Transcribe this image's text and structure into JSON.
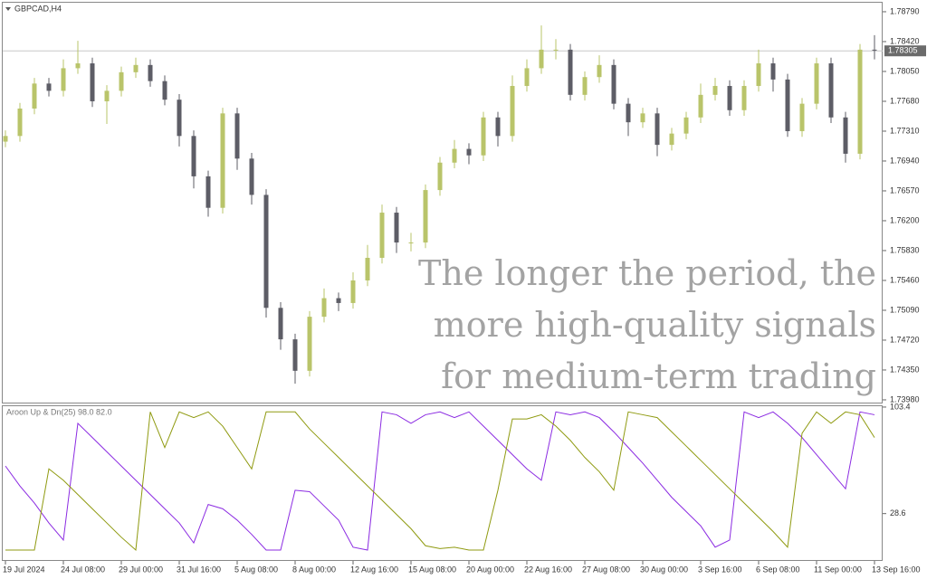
{
  "chart_data": [
    {
      "type": "candlestick",
      "title": "GBPCAD,H4",
      "annotation": [
        "The longer the period, the",
        "more high-quality signals",
        "for medium-term trading"
      ],
      "categories": [
        "19 Jul 2024",
        null,
        null,
        null,
        "24 Jul 08:00",
        null,
        null,
        null,
        "29 Jul 00:00",
        null,
        null,
        null,
        "31 Jul 16:00",
        null,
        null,
        null,
        "5 Aug 08:00",
        null,
        null,
        null,
        "8 Aug 00:00",
        null,
        null,
        null,
        "12 Aug 16:00",
        null,
        null,
        null,
        "15 Aug 08:00",
        null,
        null,
        null,
        "20 Aug 00:00",
        null,
        null,
        null,
        "22 Aug 16:00",
        null,
        null,
        null,
        "27 Aug 08:00",
        null,
        null,
        null,
        "30 Aug 00:00",
        null,
        null,
        null,
        "3 Sep 16:00",
        null,
        null,
        null,
        "6 Sep 08:00",
        null,
        null,
        null,
        "11 Sep 00:00",
        null,
        null,
        null,
        "13 Sep 16:00"
      ],
      "open": [
        1.7718,
        1.7725,
        1.7759,
        1.779,
        1.7781,
        1.7809,
        1.7815,
        1.7768,
        1.7781,
        1.7804,
        1.7813,
        1.7793,
        1.777,
        1.7725,
        1.7675,
        1.7636,
        1.7753,
        1.7697,
        1.7652,
        1.7512,
        1.7473,
        1.7434,
        1.7501,
        1.7524,
        1.7518,
        1.7546,
        1.7574,
        1.763,
        1.7593,
        1.7593,
        1.7658,
        1.7692,
        1.7709,
        1.7701,
        1.7748,
        1.7725,
        1.7787,
        1.7809,
        1.7832,
        1.7832,
        1.7776,
        1.7798,
        1.7813,
        1.7765,
        1.7742,
        1.7753,
        1.7714,
        1.7728,
        1.7748,
        1.7776,
        1.7787,
        1.7757,
        1.7787,
        1.7815,
        1.7795,
        1.7731,
        1.7765,
        1.7815,
        1.7748,
        1.7703,
        1.7832
      ],
      "high": [
        1.7732,
        1.7766,
        1.7797,
        1.7797,
        1.782,
        1.7843,
        1.7822,
        1.7788,
        1.7811,
        1.7822,
        1.782,
        1.78,
        1.7777,
        1.7732,
        1.7682,
        1.776,
        1.776,
        1.7704,
        1.7659,
        1.7519,
        1.748,
        1.7508,
        1.7536,
        1.7531,
        1.7556,
        1.759,
        1.764,
        1.7637,
        1.7605,
        1.7665,
        1.7699,
        1.772,
        1.7716,
        1.7755,
        1.7755,
        1.78,
        1.782,
        1.7862,
        1.7845,
        1.7839,
        1.7805,
        1.7825,
        1.782,
        1.7772,
        1.776,
        1.776,
        1.7735,
        1.7755,
        1.779,
        1.7797,
        1.7794,
        1.7794,
        1.7832,
        1.7822,
        1.7802,
        1.7772,
        1.7822,
        1.7822,
        1.7755,
        1.7839,
        1.785
      ],
      "low": [
        1.7711,
        1.7718,
        1.7752,
        1.7774,
        1.7774,
        1.7802,
        1.7761,
        1.774,
        1.7774,
        1.7797,
        1.7786,
        1.7763,
        1.7712,
        1.766,
        1.7625,
        1.7629,
        1.7683,
        1.764,
        1.75,
        1.746,
        1.7418,
        1.7427,
        1.7494,
        1.7508,
        1.7511,
        1.7539,
        1.7567,
        1.758,
        1.7582,
        1.7586,
        1.7651,
        1.7685,
        1.769,
        1.7694,
        1.7712,
        1.7718,
        1.778,
        1.7802,
        1.782,
        1.7769,
        1.7769,
        1.7791,
        1.7758,
        1.7725,
        1.7735,
        1.77,
        1.7707,
        1.7721,
        1.7741,
        1.7769,
        1.775,
        1.775,
        1.778,
        1.778,
        1.7724,
        1.7724,
        1.7758,
        1.7741,
        1.7692,
        1.7696,
        1.782
      ],
      "close": [
        1.7725,
        1.7759,
        1.779,
        1.7781,
        1.7809,
        1.7815,
        1.7768,
        1.7781,
        1.7804,
        1.7813,
        1.7793,
        1.777,
        1.7725,
        1.7675,
        1.7636,
        1.7753,
        1.7697,
        1.7652,
        1.7512,
        1.7473,
        1.7434,
        1.7501,
        1.7524,
        1.7518,
        1.7546,
        1.7574,
        1.763,
        1.7593,
        1.7593,
        1.7658,
        1.7692,
        1.7709,
        1.7701,
        1.7748,
        1.7725,
        1.7787,
        1.7809,
        1.7832,
        1.7832,
        1.7776,
        1.7798,
        1.7813,
        1.7765,
        1.7742,
        1.7753,
        1.7714,
        1.7728,
        1.7748,
        1.7776,
        1.7787,
        1.7757,
        1.7787,
        1.7815,
        1.7795,
        1.7731,
        1.7765,
        1.7815,
        1.7748,
        1.7703,
        1.7832,
        1.7831
      ],
      "up_color": "#b9c46a",
      "down_color": "#5d5d66",
      "last_price": 1.78305,
      "ylim": [
        1.73946,
        1.78913
      ],
      "yticks": [
        {
          "value": 1.7879,
          "label": "1.78790"
        },
        {
          "value": 1.7842,
          "label": "1.78420"
        },
        {
          "value": 1.7805,
          "label": "1.78050"
        },
        {
          "value": 1.7768,
          "label": "1.77680"
        },
        {
          "value": 1.7731,
          "label": "1.77310"
        },
        {
          "value": 1.7694,
          "label": "1.76940"
        },
        {
          "value": 1.7657,
          "label": "1.76570"
        },
        {
          "value": 1.762,
          "label": "1.76200"
        },
        {
          "value": 1.7583,
          "label": "1.75830"
        },
        {
          "value": 1.7546,
          "label": "1.75460"
        },
        {
          "value": 1.7509,
          "label": "1.75090"
        },
        {
          "value": 1.7472,
          "label": "1.74720"
        },
        {
          "value": 1.7435,
          "label": "1.74350"
        },
        {
          "value": 1.7398,
          "label": "1.73980"
        }
      ],
      "grid": false
    },
    {
      "type": "line",
      "title": "Aroon Up & Dn(25) 98.0 82.0",
      "series": [
        {
          "color": "#8b2be2",
          "values": [
            62,
            48,
            36,
            22,
            10,
            92,
            82,
            72,
            62,
            52,
            42,
            32,
            22,
            8,
            35,
            32,
            24,
            14,
            3,
            3,
            45,
            44,
            34,
            24,
            5,
            3,
            100,
            98,
            92,
            98,
            100,
            96,
            100,
            90,
            80,
            70,
            60,
            52,
            100,
            98,
            100,
            96,
            86,
            75,
            64,
            52,
            40,
            30,
            20,
            5,
            10,
            100,
            96,
            100,
            92,
            82,
            70,
            58,
            46,
            100,
            98
          ]
        },
        {
          "color": "#8f9a10",
          "values": [
            3,
            3,
            3,
            60,
            52,
            42,
            32,
            22,
            12,
            3,
            100,
            75,
            100,
            96,
            100,
            90,
            75,
            60,
            100,
            100,
            100,
            88,
            78,
            68,
            58,
            48,
            38,
            28,
            18,
            6,
            4,
            5,
            3,
            3,
            45,
            95,
            95,
            98,
            90,
            80,
            68,
            58,
            45,
            100,
            98,
            96,
            86,
            76,
            66,
            56,
            46,
            36,
            26,
            16,
            5,
            85,
            100,
            92,
            100,
            98,
            82
          ]
        }
      ],
      "ylim": [
        -4,
        104
      ],
      "yticks": [
        103.4,
        28.6
      ]
    }
  ]
}
